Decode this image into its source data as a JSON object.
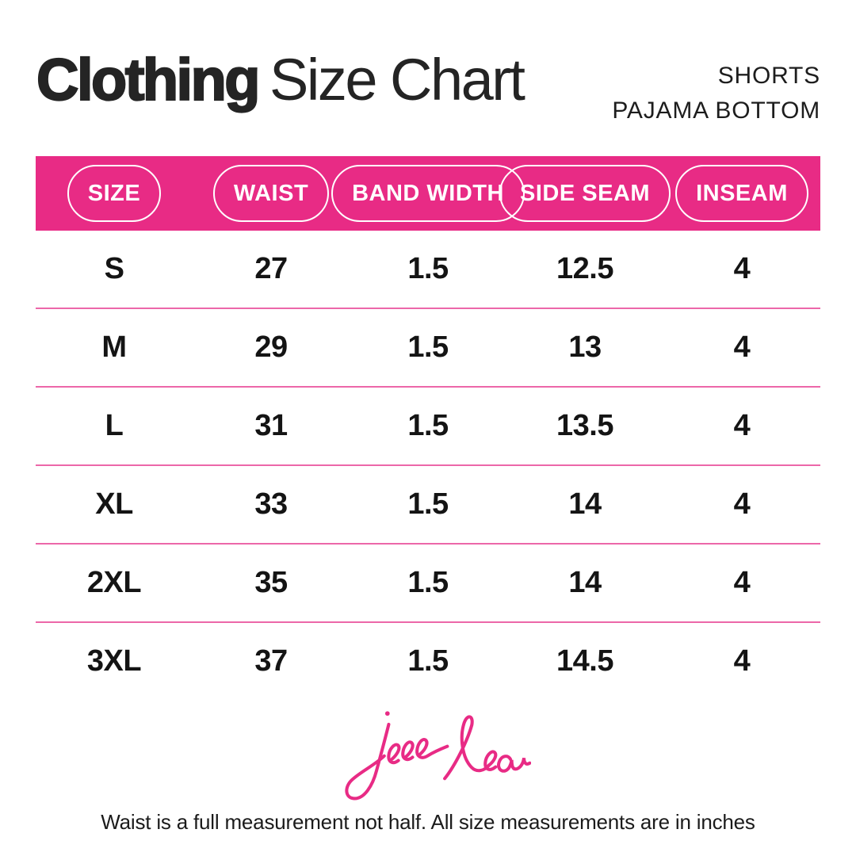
{
  "header": {
    "title_bold": "Clothing",
    "title_light": "Size Chart",
    "product_line1": "SHORTS",
    "product_line2": "PAJAMA BOTTOM"
  },
  "brand": {
    "name": "jess lea"
  },
  "footnote": "Waist is a full measurement not half. All size measurements are in inches",
  "colors": {
    "pink": "#e82b85",
    "separator_pink": "#ec67a9",
    "ink": "#242424",
    "white": "#ffffff"
  },
  "chart_data": {
    "type": "table",
    "title": "Clothing Size Chart",
    "subtitle": "Shorts Pajama Bottom",
    "units": "inches",
    "columns": [
      "SIZE",
      "WAIST",
      "BAND WIDTH",
      "SIDE SEAM",
      "INSEAM"
    ],
    "rows": [
      [
        "S",
        "27",
        "1.5",
        "12.5",
        "4"
      ],
      [
        "M",
        "29",
        "1.5",
        "13",
        "4"
      ],
      [
        "L",
        "31",
        "1.5",
        "13.5",
        "4"
      ],
      [
        "XL",
        "33",
        "1.5",
        "14",
        "4"
      ],
      [
        "2XL",
        "35",
        "1.5",
        "14",
        "4"
      ],
      [
        "3XL",
        "37",
        "1.5",
        "14.5",
        "4"
      ]
    ]
  }
}
